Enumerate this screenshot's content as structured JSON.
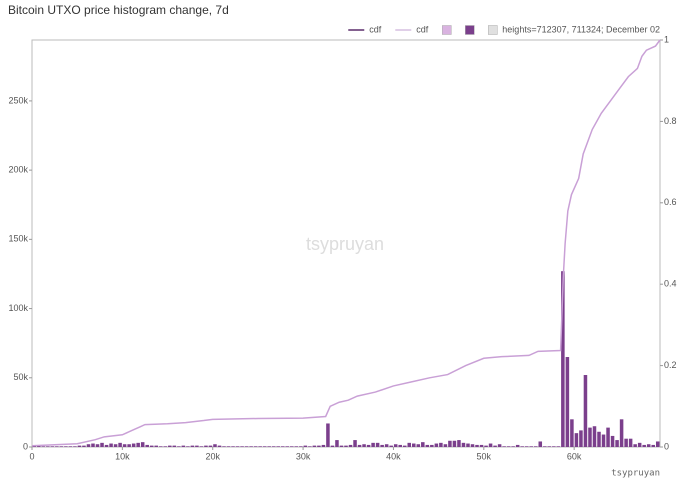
{
  "chart_data": {
    "type": "histogram",
    "title": "Bitcoin UTXO price histogram change, 7d",
    "watermark": "tsypruyan",
    "credit": "tsypruyan",
    "color": "#7b3f8c",
    "bins": [
      0,
      500,
      1000,
      1500,
      2000,
      2500,
      3000,
      3500,
      4000,
      4500,
      5000,
      5500,
      6000,
      6500,
      7000,
      7500,
      8000,
      8500,
      9000,
      9500,
      10000,
      10500,
      11000,
      11500,
      12000,
      12500,
      13000,
      13500,
      14000,
      14500,
      15000,
      15500,
      16000,
      16500,
      17000,
      17500,
      18000,
      18500,
      19000,
      19500,
      20000,
      20500,
      21000,
      21500,
      22000,
      22500,
      23000,
      23500,
      24000,
      24500,
      25000,
      25500,
      26000,
      26500,
      27000,
      27500,
      28000,
      28500,
      29000,
      29500,
      30000,
      30500,
      31000,
      31500,
      32000,
      32500,
      33000,
      33500,
      34000,
      34500,
      35000,
      35500,
      36000,
      36500,
      37000,
      37500,
      38000,
      38500,
      39000,
      39500,
      40000,
      40500,
      41000,
      41500,
      42000,
      42500,
      43000,
      43500,
      44000,
      44500,
      45000,
      45500,
      46000,
      46500,
      47000,
      47500,
      48000,
      48500,
      49000,
      49500,
      50000,
      50500,
      51000,
      51500,
      52000,
      52500,
      53000,
      53500,
      54000,
      54500,
      55000,
      55500,
      56000,
      56500,
      57000,
      57500,
      58000,
      58500,
      59000,
      59500,
      60000,
      60500,
      61000,
      61500,
      62000,
      62500,
      63000,
      63500,
      64000,
      64500,
      65000,
      65500,
      66000,
      66500,
      67000,
      67500,
      68000,
      68500,
      69000,
      69500
    ],
    "values": [
      1000,
      1000,
      500,
      500,
      500,
      500,
      500,
      500,
      500,
      500,
      1000,
      1000,
      2000,
      2500,
      2000,
      3000,
      1500,
      2500,
      2000,
      3000,
      2000,
      2000,
      2500,
      3000,
      3500,
      1500,
      1000,
      1000,
      500,
      500,
      1000,
      1000,
      500,
      1000,
      500,
      1000,
      1000,
      500,
      1000,
      1000,
      2000,
      1000,
      500,
      500,
      500,
      500,
      500,
      500,
      500,
      500,
      500,
      500,
      500,
      500,
      500,
      500,
      500,
      500,
      500,
      500,
      1000,
      500,
      1000,
      1000,
      1500,
      17000,
      1000,
      5000,
      1000,
      1000,
      1500,
      5000,
      1500,
      2000,
      1500,
      3000,
      3000,
      1500,
      2000,
      1000,
      2000,
      1500,
      1000,
      3000,
      2500,
      2000,
      3500,
      1500,
      1500,
      2500,
      3000,
      2000,
      4500,
      4500,
      5000,
      3000,
      2500,
      2000,
      1500,
      1500,
      1000,
      2500,
      1000,
      2000,
      500,
      500,
      500,
      1500,
      500,
      500,
      500,
      500,
      4000,
      500,
      500,
      500,
      500,
      127000,
      65000,
      20000,
      10000,
      12000,
      52000,
      14000,
      15000,
      11000,
      9000,
      14000,
      8000,
      5000,
      20000,
      6000,
      6000,
      2000,
      3000,
      1500,
      2000,
      1500,
      4000
    ],
    "cdf": {
      "name": "cdf",
      "color": "#c9a0d6",
      "axis": "y2",
      "x": [
        0,
        5000,
        7000,
        8000,
        10000,
        11000,
        12000,
        12500,
        15000,
        17000,
        19000,
        20000,
        25000,
        30000,
        32500,
        33000,
        34000,
        35000,
        36000,
        38000,
        40000,
        42000,
        44000,
        46000,
        48000,
        50000,
        52000,
        55000,
        56000,
        58500,
        58800,
        59000,
        59300,
        59700,
        60500,
        61000,
        62000,
        63000,
        64000,
        65000,
        66000,
        67000,
        67500,
        68000,
        69000,
        69500
      ],
      "values": [
        0.003,
        0.008,
        0.018,
        0.025,
        0.03,
        0.04,
        0.05,
        0.055,
        0.057,
        0.06,
        0.065,
        0.068,
        0.07,
        0.071,
        0.075,
        0.1,
        0.11,
        0.115,
        0.125,
        0.135,
        0.15,
        0.16,
        0.17,
        0.178,
        0.2,
        0.218,
        0.222,
        0.225,
        0.235,
        0.237,
        0.42,
        0.5,
        0.58,
        0.62,
        0.66,
        0.72,
        0.78,
        0.82,
        0.85,
        0.88,
        0.91,
        0.93,
        0.96,
        0.975,
        0.985,
        1
      ]
    },
    "legend": [
      {
        "label": "cdf",
        "color": "#5b2d6b",
        "kind": "line"
      },
      {
        "label": "cdf",
        "color": "#d6bfe0",
        "kind": "line"
      },
      {
        "color": "#d9b3e0",
        "kind": "box"
      },
      {
        "color": "#7b3f8c",
        "kind": "box"
      },
      {
        "label": "heights=712307, 711324; December 02",
        "color": "#e0e0e0",
        "kind": "box"
      }
    ],
    "xlim": [
      0,
      69500
    ],
    "ylim": [
      0,
      294000
    ],
    "y2lim": [
      0,
      1
    ],
    "xticks": [
      0,
      {
        "value": 10000,
        "label": "10k"
      },
      {
        "value": 20000,
        "label": "20k"
      },
      {
        "value": 30000,
        "label": "30k"
      },
      {
        "value": 40000,
        "label": "40k"
      },
      {
        "value": 50000,
        "label": "50k"
      },
      {
        "value": 60000,
        "label": "60k"
      }
    ],
    "yticks": [
      0,
      {
        "value": 50000,
        "label": "50k"
      },
      {
        "value": 100000,
        "label": "100k"
      },
      {
        "value": 150000,
        "label": "150k"
      },
      {
        "value": 200000,
        "label": "200k"
      },
      {
        "value": 250000,
        "label": "250k"
      }
    ],
    "y2ticks": [
      0,
      0.2,
      0.4,
      0.6,
      0.8,
      1
    ]
  }
}
